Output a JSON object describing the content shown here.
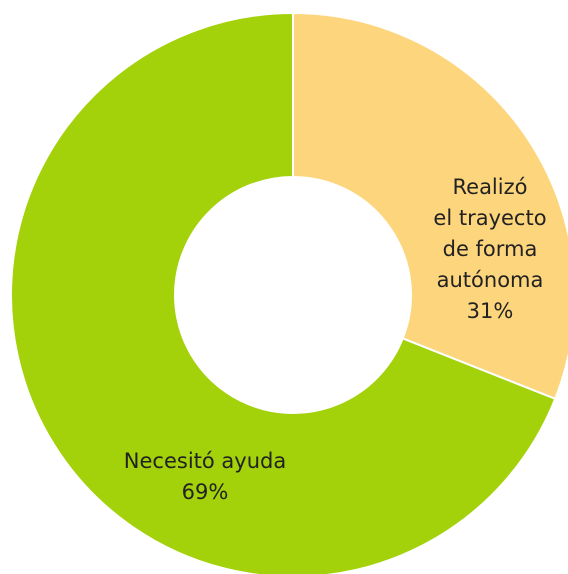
{
  "chart_data": {
    "type": "donut",
    "categories": [
      "Realizó\nel trayecto\nde forma\nautónoma",
      "Necesitó ayuda"
    ],
    "values": [
      31,
      69
    ],
    "value_labels": [
      "31%",
      "69%"
    ],
    "colors": [
      "#fdd57c",
      "#a3d10a"
    ]
  }
}
